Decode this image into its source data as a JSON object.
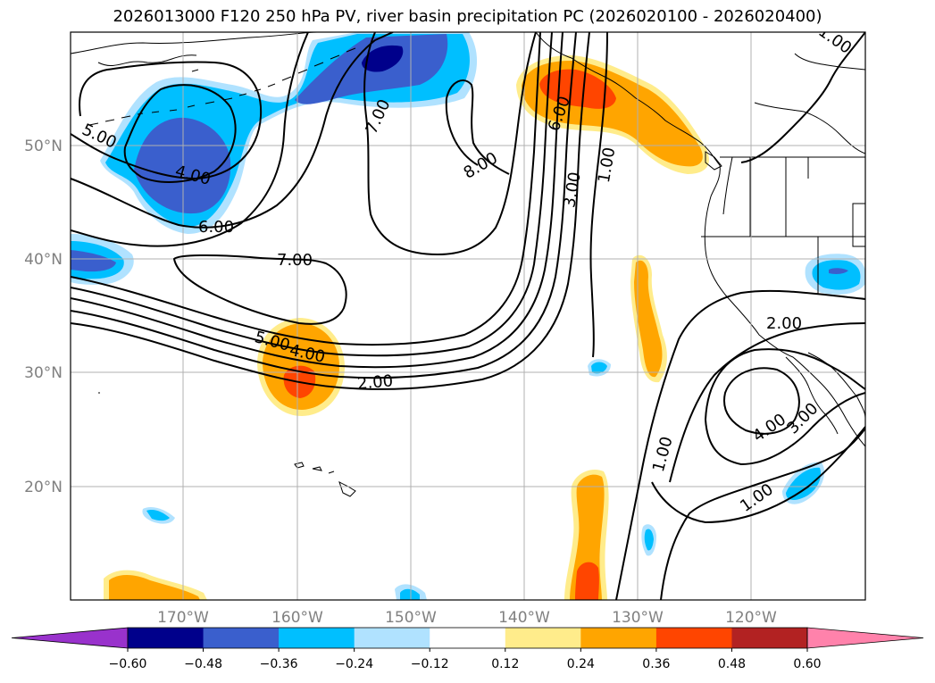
{
  "title": "2026013000 F120 250 hPa PV, river basin precipitation PC (2026020100 - 2026020400)",
  "lat_labels": [
    "50°N",
    "40°N",
    "30°N",
    "20°N"
  ],
  "lon_labels": [
    "170°W",
    "160°W",
    "150°W",
    "140°W",
    "130°W",
    "120°W"
  ],
  "contour_labels": [
    "1.00",
    "5.00",
    "4.00",
    "6.00",
    "7.00",
    "8.00",
    "6.00",
    "3.00",
    "1.00",
    "7.00",
    "5.00",
    "4.00",
    "2.00",
    "2.00",
    "4.00",
    "3.00",
    "1.00",
    "1.00"
  ],
  "colorbar": {
    "ticks": [
      "−0.60",
      "−0.48",
      "−0.36",
      "−0.24",
      "−0.12",
      "0.12",
      "0.24",
      "0.36",
      "0.48",
      "0.60"
    ],
    "colors": [
      "#9932cc",
      "#00008b",
      "#3a5fcd",
      "#00bfff",
      "#b0e2ff",
      "#ffffff",
      "#ffec8b",
      "#ffa500",
      "#ff4500",
      "#b22222",
      "#ff82ab"
    ]
  },
  "shading_colors": {
    "light_blue": "#b0e2ff",
    "sky_blue": "#00bfff",
    "royal_blue": "#3a5fcd",
    "navy": "#00008b",
    "pale_yellow": "#ffec8b",
    "orange": "#ffa500",
    "red_orange": "#ff4500"
  }
}
